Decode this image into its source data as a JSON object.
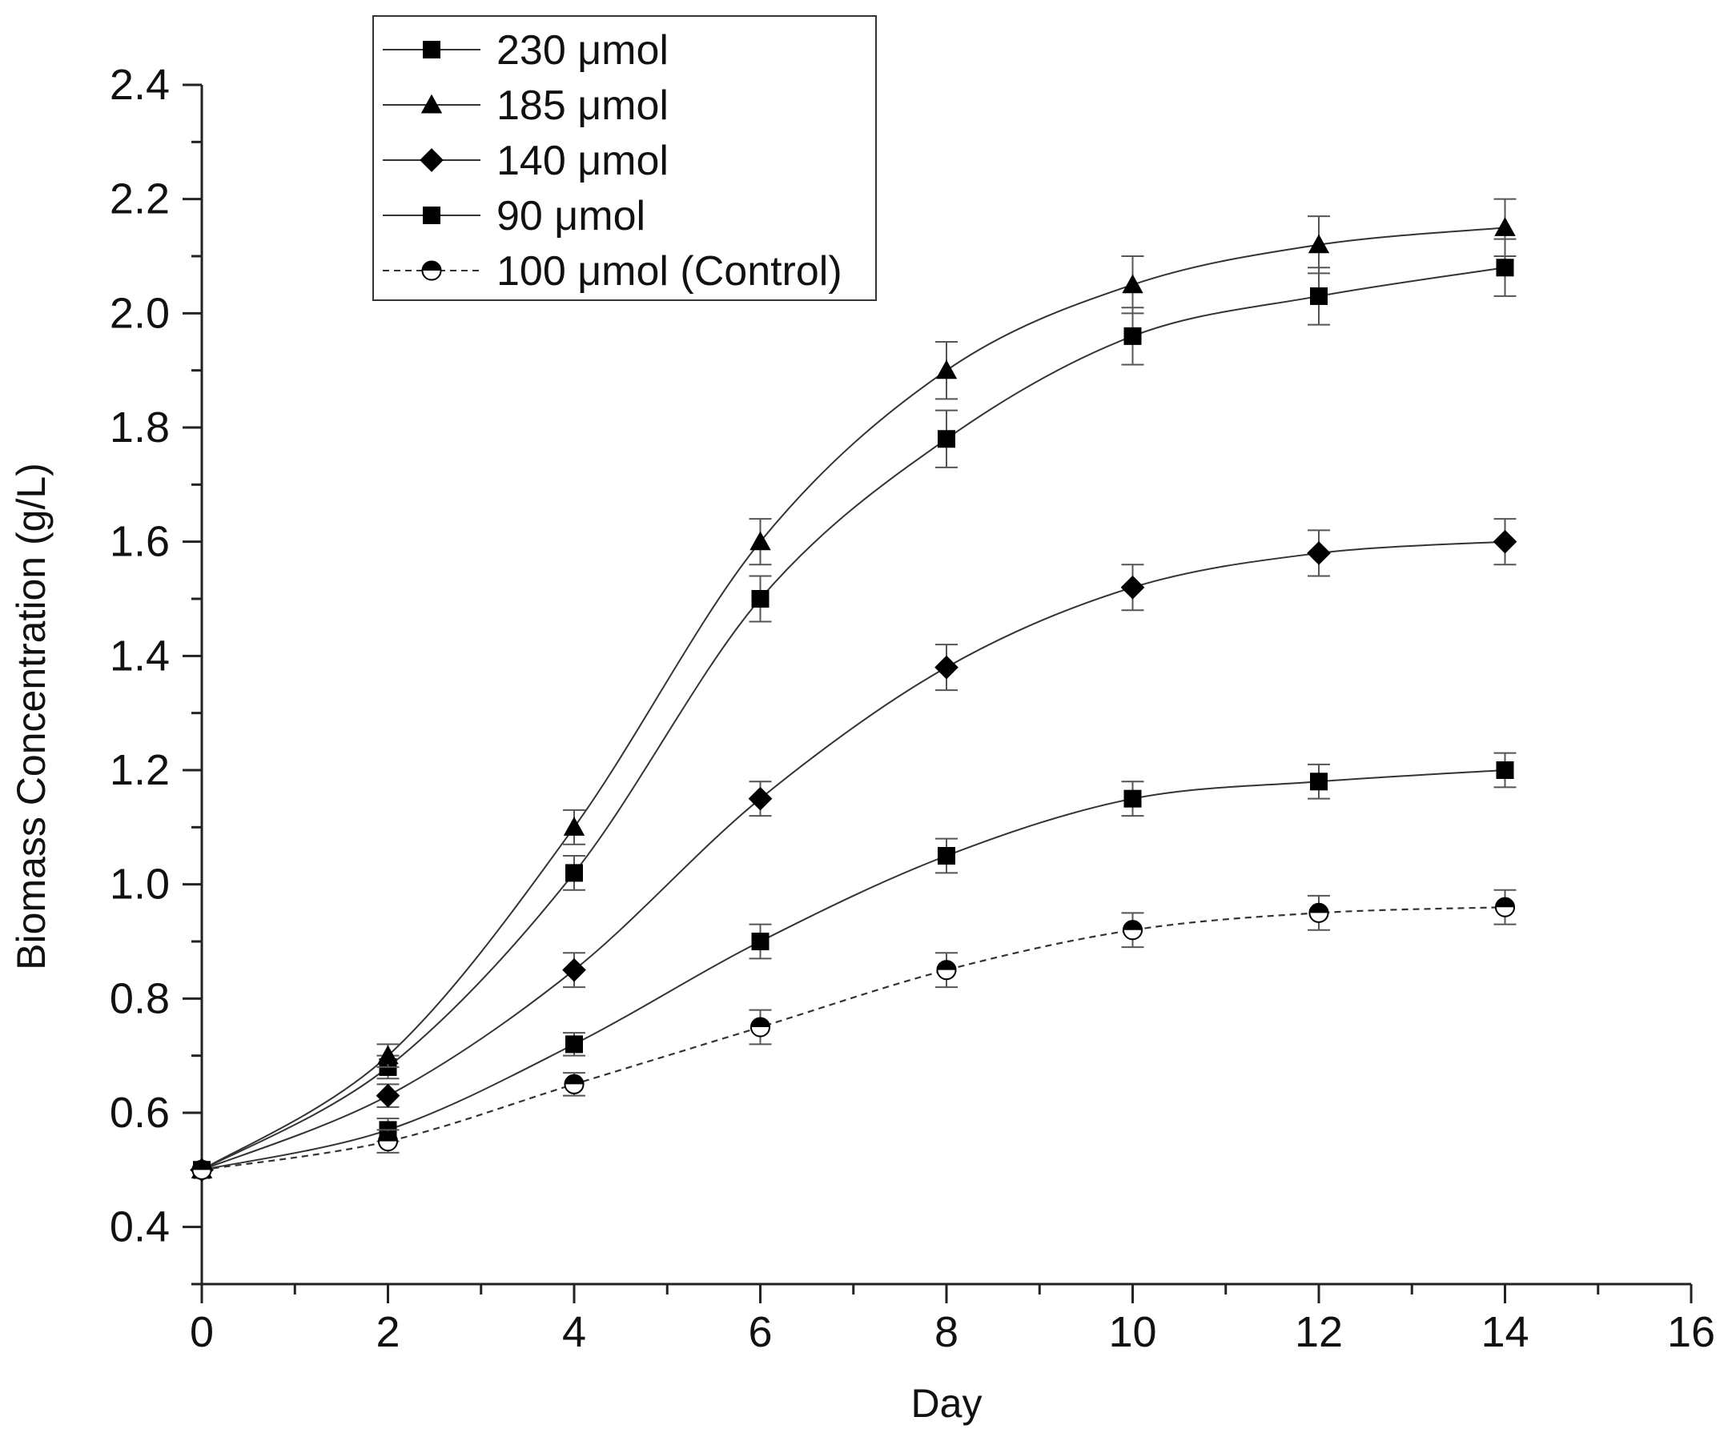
{
  "chart_data": {
    "type": "line",
    "xlabel": "Day",
    "ylabel": "Biomass Concentration (g/L)",
    "xlim": [
      0,
      16
    ],
    "ylim": [
      0.3,
      2.4
    ],
    "x_ticks": [
      0,
      2,
      4,
      6,
      8,
      10,
      12,
      14,
      16
    ],
    "x_tick_labels": [
      "0",
      "2",
      "4",
      "6",
      "8",
      "10",
      "12",
      "14",
      "16"
    ],
    "y_ticks": [
      0.4,
      0.6,
      0.8,
      1.0,
      1.2,
      1.4,
      1.6,
      1.8,
      2.0,
      2.2,
      2.4
    ],
    "y_tick_labels": [
      "0.4",
      "0.6",
      "0.8",
      "1.0",
      "1.2",
      "1.4",
      "1.6",
      "1.8",
      "2.0",
      "2.2",
      "2.4"
    ],
    "grid": false,
    "legend_position": "top-left",
    "x": [
      0,
      2,
      4,
      6,
      8,
      10,
      12,
      14
    ],
    "series": [
      {
        "name": "230 μmol",
        "marker": "square",
        "line_style": "solid",
        "values": [
          0.5,
          0.68,
          1.02,
          1.5,
          1.78,
          1.96,
          2.03,
          2.08
        ],
        "error": [
          0.0,
          0.02,
          0.03,
          0.04,
          0.05,
          0.05,
          0.05,
          0.05
        ]
      },
      {
        "name": "185 μmol",
        "marker": "triangle",
        "line_style": "solid",
        "values": [
          0.5,
          0.7,
          1.1,
          1.6,
          1.9,
          2.05,
          2.12,
          2.15
        ],
        "error": [
          0.0,
          0.02,
          0.03,
          0.04,
          0.05,
          0.05,
          0.05,
          0.05
        ]
      },
      {
        "name": "140 μmol",
        "marker": "diamond",
        "line_style": "solid",
        "values": [
          0.5,
          0.63,
          0.85,
          1.15,
          1.38,
          1.52,
          1.58,
          1.6
        ],
        "error": [
          0.0,
          0.02,
          0.03,
          0.03,
          0.04,
          0.04,
          0.04,
          0.04
        ]
      },
      {
        "name": "90 μmol",
        "marker": "square",
        "line_style": "solid",
        "values": [
          0.5,
          0.57,
          0.72,
          0.9,
          1.05,
          1.15,
          1.18,
          1.2
        ],
        "error": [
          0.0,
          0.02,
          0.02,
          0.03,
          0.03,
          0.03,
          0.03,
          0.03
        ]
      },
      {
        "name": "100 μmol (Control)",
        "marker": "half-filled-circle",
        "line_style": "dashed",
        "values": [
          0.5,
          0.55,
          0.65,
          0.75,
          0.85,
          0.92,
          0.95,
          0.96
        ],
        "error": [
          0.0,
          0.02,
          0.02,
          0.03,
          0.03,
          0.03,
          0.03,
          0.03
        ]
      }
    ]
  }
}
